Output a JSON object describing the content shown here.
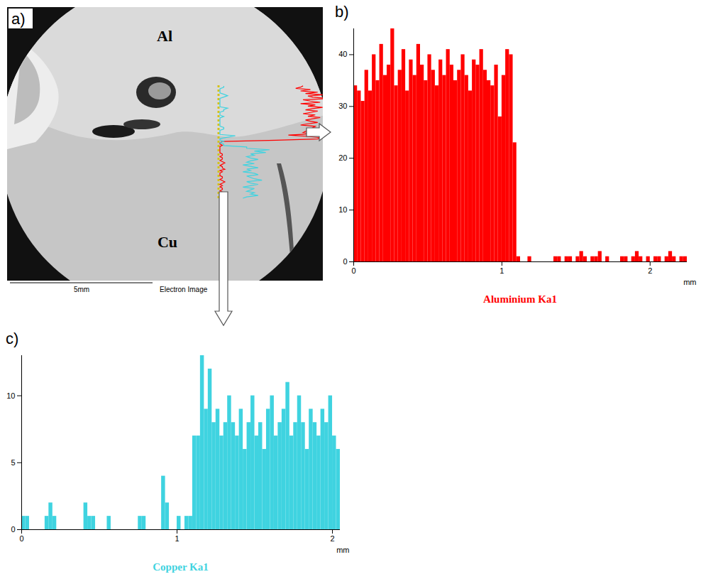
{
  "image_panel": {
    "label": "a)",
    "regions": [
      "Al",
      "Cu"
    ],
    "scale_bar": "5mm",
    "caption": "Electron Image"
  },
  "chart_data": [
    {
      "panel": "b)",
      "type": "bar",
      "title": "Aluminium Ka1",
      "x_label": "mm",
      "color": "#ff0000",
      "bins": [
        0,
        0.025,
        0.05,
        0.075,
        0.1,
        0.125,
        0.15,
        0.175,
        0.2,
        0.225,
        0.25,
        0.275,
        0.3,
        0.325,
        0.35,
        0.375,
        0.4,
        0.425,
        0.45,
        0.475,
        0.5,
        0.525,
        0.55,
        0.575,
        0.6,
        0.625,
        0.65,
        0.675,
        0.7,
        0.725,
        0.75,
        0.775,
        0.8,
        0.825,
        0.85,
        0.875,
        0.9,
        0.925,
        0.95,
        0.975,
        1,
        1.025,
        1.05,
        1.075,
        1.1,
        1.125,
        1.15,
        1.175,
        1.2,
        1.225,
        1.25,
        1.275,
        1.3,
        1.325,
        1.35,
        1.375,
        1.4,
        1.425,
        1.45,
        1.475,
        1.5,
        1.525,
        1.55,
        1.575,
        1.6,
        1.625,
        1.65,
        1.675,
        1.7,
        1.725,
        1.75,
        1.775,
        1.8,
        1.825,
        1.85,
        1.875,
        1.9,
        1.925,
        1.95,
        1.975,
        2,
        2.025,
        2.05,
        2.075,
        2.1,
        2.125,
        2.15,
        2.175,
        2.2,
        2.225,
        2.25
      ],
      "values": [
        34,
        33,
        31,
        37,
        33,
        40,
        35,
        42,
        36,
        38,
        45,
        34,
        37,
        41,
        33,
        39,
        36,
        42,
        38,
        35,
        40,
        37,
        34,
        39,
        36,
        41,
        38,
        35,
        37,
        40,
        36,
        33,
        39,
        38,
        41,
        37,
        35,
        34,
        38,
        28,
        36,
        41,
        40,
        23,
        1,
        0,
        0,
        1,
        0,
        0,
        0,
        0,
        0,
        0,
        1,
        1,
        0,
        1,
        1,
        0,
        1,
        2,
        1,
        0,
        1,
        1,
        2,
        0,
        1,
        0,
        0,
        0,
        1,
        1,
        0,
        1,
        2,
        1,
        0,
        1,
        0,
        1,
        1,
        0,
        1,
        2,
        1,
        0,
        1,
        1
      ],
      "xlim": [
        0,
        2.25
      ],
      "xticks": [
        0,
        1,
        2
      ],
      "ylim": [
        0,
        45
      ],
      "yticks": [
        0,
        10,
        20,
        30,
        40
      ]
    },
    {
      "panel": "c)",
      "type": "bar",
      "title": "Copper Ka1",
      "x_label": "mm",
      "color": "#3fd3e0",
      "bins": [
        0,
        0.025,
        0.05,
        0.075,
        0.1,
        0.125,
        0.15,
        0.175,
        0.2,
        0.225,
        0.25,
        0.275,
        0.3,
        0.325,
        0.35,
        0.375,
        0.4,
        0.425,
        0.45,
        0.475,
        0.5,
        0.525,
        0.55,
        0.575,
        0.6,
        0.625,
        0.65,
        0.675,
        0.7,
        0.725,
        0.75,
        0.775,
        0.8,
        0.825,
        0.85,
        0.875,
        0.9,
        0.925,
        0.95,
        0.975,
        1,
        1.025,
        1.05,
        1.075,
        1.1,
        1.125,
        1.15,
        1.175,
        1.2,
        1.225,
        1.25,
        1.275,
        1.3,
        1.325,
        1.35,
        1.375,
        1.4,
        1.425,
        1.45,
        1.475,
        1.5,
        1.525,
        1.55,
        1.575,
        1.6,
        1.625,
        1.65,
        1.675,
        1.7,
        1.725,
        1.75,
        1.775,
        1.8,
        1.825,
        1.85,
        1.875,
        1.9,
        1.925,
        1.95,
        1.975,
        2,
        2.025,
        2.05
      ],
      "values": [
        1,
        1,
        0,
        0,
        0,
        0,
        1,
        2,
        1,
        0,
        0,
        0,
        0,
        0,
        0,
        0,
        2,
        1,
        1,
        0,
        0,
        0,
        1,
        0,
        0,
        0,
        0,
        0,
        0,
        0,
        1,
        1,
        0,
        0,
        0,
        0,
        4,
        2,
        0,
        0,
        1,
        0,
        1,
        1,
        7,
        7,
        13,
        9,
        12,
        8,
        9,
        7,
        8,
        10,
        8,
        7,
        9,
        6,
        8,
        10,
        7,
        8,
        6,
        9,
        10,
        7,
        8,
        9,
        11,
        7,
        8,
        10,
        8,
        6,
        9,
        8,
        7,
        9,
        8,
        10,
        7,
        6
      ],
      "xlim": [
        0,
        2.05
      ],
      "xticks": [
        0,
        1,
        2
      ],
      "ylim": [
        0,
        13
      ],
      "yticks": [
        0,
        5,
        10
      ]
    }
  ]
}
